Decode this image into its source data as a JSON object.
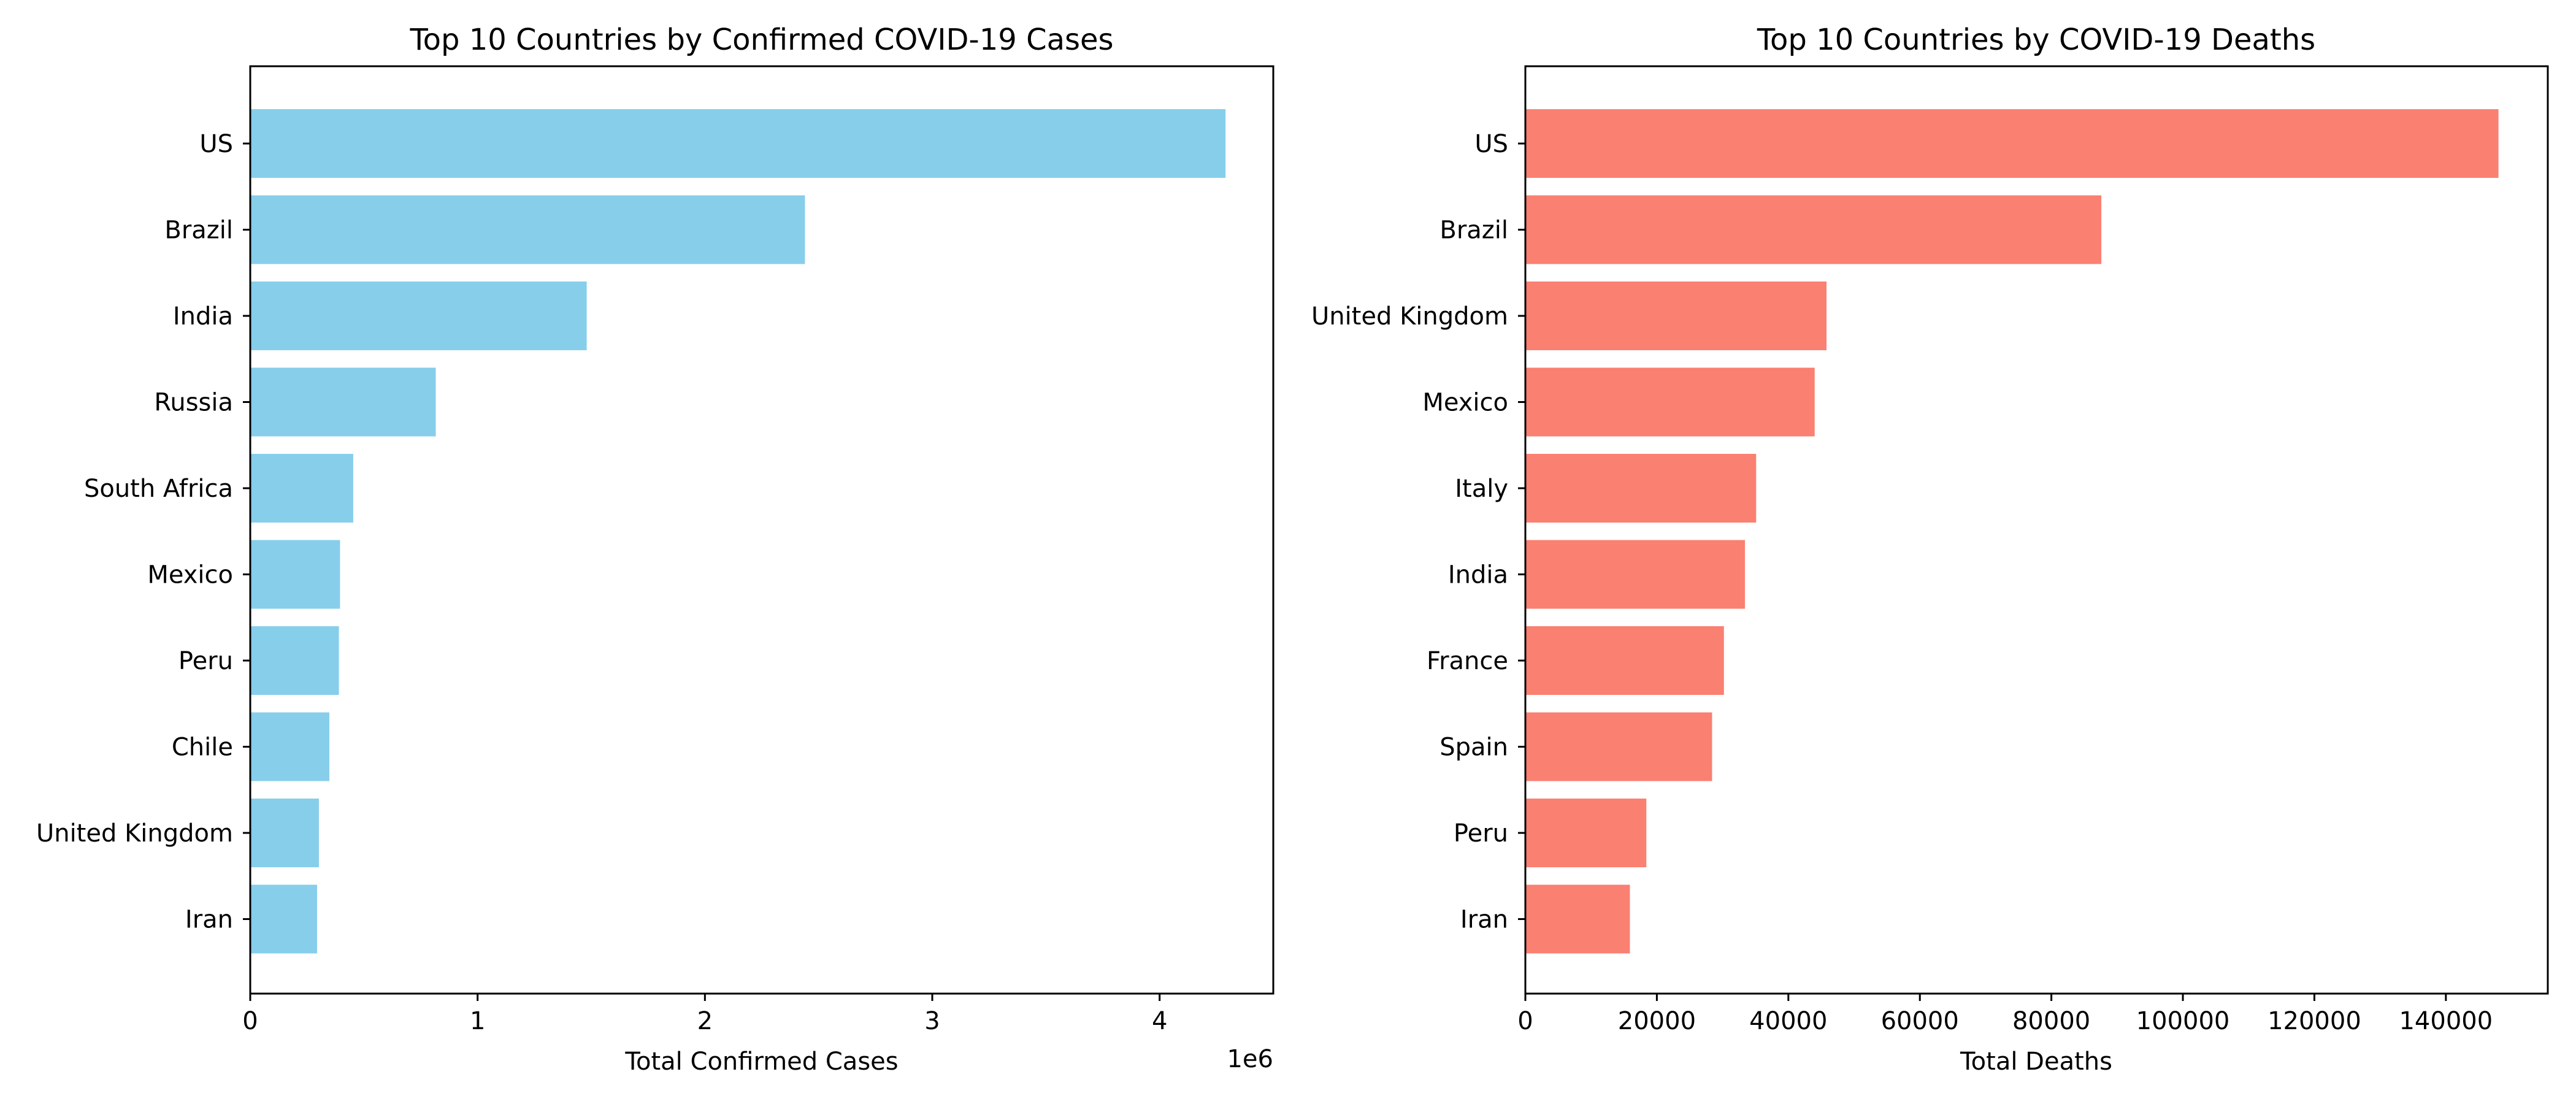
{
  "chart_data": [
    {
      "type": "bar",
      "orientation": "horizontal",
      "title": "Top 10 Countries by Confirmed COVID-19 Cases",
      "xlabel": "Total Confirmed Cases",
      "ylabel": "",
      "x_scale_label": "1e6",
      "categories": [
        "US",
        "Brazil",
        "India",
        "Russia",
        "South Africa",
        "Mexico",
        "Peru",
        "Chile",
        "United Kingdom",
        "Iran"
      ],
      "values": [
        4290000,
        2440000,
        1480000,
        816000,
        453000,
        395000,
        390000,
        348000,
        302000,
        294000
      ],
      "xlim": [
        0,
        4500000
      ],
      "xticks": [
        0,
        1000000,
        2000000,
        3000000,
        4000000
      ],
      "xtick_labels": [
        "0",
        "1",
        "2",
        "3",
        "4"
      ],
      "bar_color": "#87CEEB",
      "grid": false
    },
    {
      "type": "bar",
      "orientation": "horizontal",
      "title": "Top 10 Countries by COVID-19 Deaths",
      "xlabel": "Total Deaths",
      "ylabel": "",
      "x_scale_label": "",
      "categories": [
        "US",
        "Brazil",
        "United Kingdom",
        "Mexico",
        "Italy",
        "India",
        "France",
        "Spain",
        "Peru",
        "Iran"
      ],
      "values": [
        148000,
        87600,
        45800,
        44000,
        35100,
        33400,
        30200,
        28400,
        18400,
        15900
      ],
      "xlim": [
        0,
        155500
      ],
      "xticks": [
        0,
        20000,
        40000,
        60000,
        80000,
        100000,
        120000,
        140000
      ],
      "xtick_labels": [
        "0",
        "20000",
        "40000",
        "60000",
        "80000",
        "100000",
        "120000",
        "140000"
      ],
      "bar_color": "#FA8072",
      "grid": false
    }
  ]
}
